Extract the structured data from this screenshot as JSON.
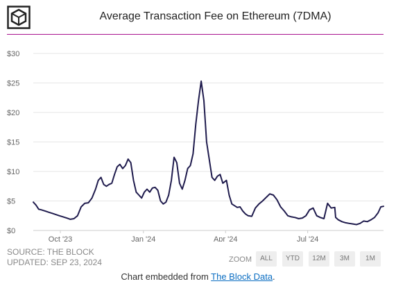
{
  "header": {
    "logo_icon": "the-block-cube-icon",
    "accent_color": "#a8118f"
  },
  "chart_data": {
    "type": "line",
    "title": "Average Transaction Fee on Ethereum (7DMA)",
    "xlabel": "",
    "ylabel": "",
    "ylim": [
      0,
      30
    ],
    "y_ticks": [
      "$0",
      "$5",
      "$10",
      "$15",
      "$20",
      "$25",
      "$30"
    ],
    "y_tick_values": [
      0,
      5,
      10,
      15,
      20,
      25,
      30
    ],
    "x_ticks": [
      "Oct '23",
      "Jan '24",
      "Apr '24",
      "Jul '24"
    ],
    "x_tick_dates": [
      "2023-10-01",
      "2024-01-01",
      "2024-04-01",
      "2024-07-01"
    ],
    "xlim": [
      "2023-09-01",
      "2024-09-23"
    ],
    "grid": "horizontal",
    "line_color": "#1f1b4d",
    "series": [
      {
        "x": [
          "2023-09-01",
          "2023-09-04",
          "2023-09-07",
          "2023-09-10",
          "2023-09-14",
          "2023-09-18",
          "2023-09-22",
          "2023-09-26",
          "2023-09-30",
          "2023-10-04",
          "2023-10-08",
          "2023-10-12",
          "2023-10-16",
          "2023-10-20",
          "2023-10-24",
          "2023-10-28",
          "2023-11-01",
          "2023-11-05",
          "2023-11-09",
          "2023-11-12",
          "2023-11-15",
          "2023-11-18",
          "2023-11-21",
          "2023-11-24",
          "2023-11-27",
          "2023-11-30",
          "2023-12-03",
          "2023-12-06",
          "2023-12-09",
          "2023-12-12",
          "2023-12-15",
          "2023-12-18",
          "2023-12-21",
          "2023-12-24",
          "2023-12-27",
          "2023-12-30",
          "2024-01-02",
          "2024-01-05",
          "2024-01-08",
          "2024-01-11",
          "2024-01-14",
          "2024-01-17",
          "2024-01-20",
          "2024-01-23",
          "2024-01-26",
          "2024-01-29",
          "2024-02-01",
          "2024-02-04",
          "2024-02-07",
          "2024-02-10",
          "2024-02-13",
          "2024-02-16",
          "2024-02-19",
          "2024-02-22",
          "2024-02-25",
          "2024-02-28",
          "2024-03-02",
          "2024-03-05",
          "2024-03-08",
          "2024-03-11",
          "2024-03-14",
          "2024-03-17",
          "2024-03-20",
          "2024-03-23",
          "2024-03-26",
          "2024-03-29",
          "2024-04-02",
          "2024-04-05",
          "2024-04-08",
          "2024-04-11",
          "2024-04-14",
          "2024-04-17",
          "2024-04-20",
          "2024-04-23",
          "2024-04-26",
          "2024-04-30",
          "2024-05-04",
          "2024-05-08",
          "2024-05-12",
          "2024-05-16",
          "2024-05-20",
          "2024-05-24",
          "2024-05-28",
          "2024-06-01",
          "2024-06-05",
          "2024-06-09",
          "2024-06-13",
          "2024-06-17",
          "2024-06-21",
          "2024-06-25",
          "2024-06-29",
          "2024-07-03",
          "2024-07-07",
          "2024-07-11",
          "2024-07-15",
          "2024-07-19",
          "2024-07-23",
          "2024-07-27",
          "2024-07-31",
          "2024-08-01",
          "2024-08-04",
          "2024-08-08",
          "2024-08-12",
          "2024-08-16",
          "2024-08-20",
          "2024-08-24",
          "2024-08-28",
          "2024-09-01",
          "2024-09-05",
          "2024-09-09",
          "2024-09-13",
          "2024-09-17",
          "2024-09-20",
          "2024-09-23"
        ],
        "values": [
          4.8,
          4.3,
          3.6,
          3.5,
          3.3,
          3.1,
          2.9,
          2.7,
          2.5,
          2.3,
          2.1,
          1.9,
          2.0,
          2.5,
          4.0,
          4.6,
          4.7,
          5.5,
          7.0,
          8.5,
          9.0,
          7.8,
          7.5,
          7.8,
          8.0,
          9.5,
          10.8,
          11.2,
          10.5,
          11.0,
          12.1,
          11.5,
          8.5,
          6.5,
          6.0,
          5.5,
          6.5,
          7.0,
          6.5,
          7.2,
          7.3,
          6.8,
          5.0,
          4.5,
          4.8,
          6.0,
          8.5,
          12.4,
          11.5,
          8.0,
          7.0,
          8.5,
          10.5,
          11.0,
          13.0,
          18.0,
          22.0,
          25.3,
          22.0,
          15.0,
          12.0,
          9.0,
          8.5,
          9.2,
          9.5,
          8.0,
          8.5,
          6.0,
          4.5,
          4.2,
          3.9,
          4.0,
          3.3,
          2.8,
          2.5,
          2.4,
          3.8,
          4.5,
          5.0,
          5.6,
          6.2,
          6.0,
          5.2,
          4.0,
          3.3,
          2.5,
          2.3,
          2.2,
          2.0,
          2.1,
          2.5,
          3.5,
          3.8,
          2.5,
          2.2,
          2.0,
          4.6,
          3.8,
          3.9,
          2.2,
          1.8,
          1.5,
          1.3,
          1.2,
          1.1,
          1.0,
          1.2,
          1.6,
          1.5,
          1.8,
          2.2,
          3.0,
          4.0,
          4.1
        ]
      }
    ]
  },
  "footer": {
    "source": "SOURCE: THE BLOCK",
    "updated": "UPDATED: SEP 23, 2024",
    "zoom_label": "ZOOM",
    "zoom_buttons": [
      "ALL",
      "YTD",
      "12M",
      "3M",
      "1M"
    ],
    "embed_text": "Chart embedded from ",
    "embed_link": "The Block Data",
    "embed_suffix": "."
  }
}
